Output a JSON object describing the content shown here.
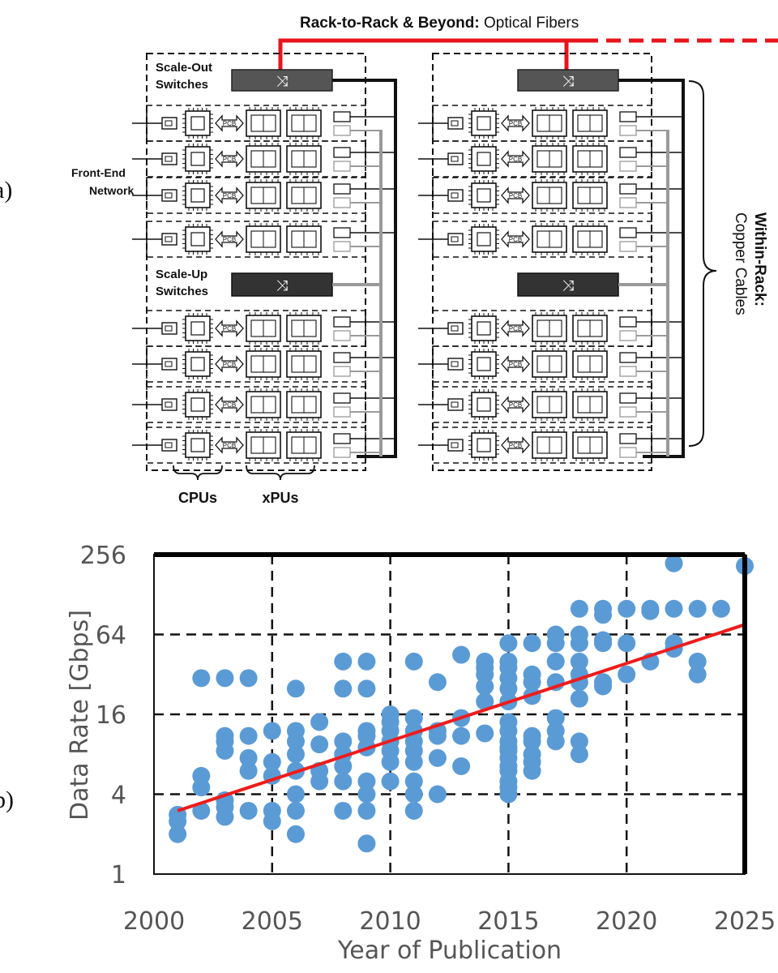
{
  "panel_a": {
    "marker": "a)",
    "rack_to_rack_bold": "Rack-to-Rack & Beyond:",
    "rack_to_rack_rest": " Optical Fibers",
    "scale_out_line1": "Scale-Out",
    "scale_out_line2": "Switches",
    "scale_up_line1": "Scale-Up",
    "scale_up_line2": "Switches",
    "front_end_line1": "Front-End",
    "front_end_line2": "Network",
    "pcb_label": "PCB",
    "cpus_label": "CPUs",
    "xpus_label": "xPUs",
    "within_rack_bold": "Within-Rack:",
    "within_rack_rest": "Copper Cables",
    "colors": {
      "fiber": "#e8141c",
      "switch": "#444444",
      "cable": "#111111",
      "grey_cable": "#9a9a9a"
    }
  },
  "panel_b": {
    "marker": "b)"
  },
  "chart_data": {
    "type": "scatter",
    "title": "",
    "xlabel": "Year of Publication",
    "ylabel": "Data Rate [Gbps]",
    "xlim": [
      2000,
      2025
    ],
    "ylim": [
      1,
      256
    ],
    "yscale": "log2",
    "xticks": [
      2000,
      2005,
      2010,
      2015,
      2020,
      2025
    ],
    "xtick_labels": [
      "2000",
      "2005",
      "2010",
      "2015",
      "2020",
      "2025"
    ],
    "yticks": [
      1,
      4,
      16,
      64,
      256
    ],
    "ytick_labels": [
      "1",
      "4",
      "16",
      "64",
      "256"
    ],
    "grid": true,
    "point_color": "#5b9bd5",
    "trend_color": "#ee1c1c",
    "trendline": {
      "x": [
        2001,
        2025
      ],
      "y": [
        3.0,
        76
      ]
    },
    "points": [
      [
        2001,
        2.0
      ],
      [
        2001,
        2.5
      ],
      [
        2001,
        2.8
      ],
      [
        2002,
        3.0
      ],
      [
        2002,
        4.5
      ],
      [
        2002,
        5.5
      ],
      [
        2002,
        30
      ],
      [
        2003,
        3.2
      ],
      [
        2003,
        2.7
      ],
      [
        2003,
        3.6
      ],
      [
        2003,
        8.5
      ],
      [
        2003,
        10
      ],
      [
        2003,
        11
      ],
      [
        2003,
        30
      ],
      [
        2004,
        3.0
      ],
      [
        2004,
        6
      ],
      [
        2004,
        7.5
      ],
      [
        2004,
        11
      ],
      [
        2004,
        30
      ],
      [
        2005,
        3.0
      ],
      [
        2005,
        2.5
      ],
      [
        2005,
        5.5
      ],
      [
        2005,
        7
      ],
      [
        2005,
        12
      ],
      [
        2006,
        2.0
      ],
      [
        2006,
        3.0
      ],
      [
        2006,
        4
      ],
      [
        2006,
        6
      ],
      [
        2006,
        8
      ],
      [
        2006,
        10
      ],
      [
        2006,
        12
      ],
      [
        2006,
        25
      ],
      [
        2007,
        5
      ],
      [
        2007,
        6
      ],
      [
        2007,
        9.5
      ],
      [
        2007,
        14
      ],
      [
        2008,
        3.0
      ],
      [
        2008,
        5
      ],
      [
        2008,
        6.5
      ],
      [
        2008,
        8
      ],
      [
        2008,
        10
      ],
      [
        2008,
        25
      ],
      [
        2008,
        40
      ],
      [
        2009,
        1.7
      ],
      [
        2009,
        3.0
      ],
      [
        2009,
        4
      ],
      [
        2009,
        5
      ],
      [
        2009,
        9
      ],
      [
        2009,
        11
      ],
      [
        2009,
        12
      ],
      [
        2009,
        25
      ],
      [
        2009,
        40
      ],
      [
        2010,
        5
      ],
      [
        2010,
        7
      ],
      [
        2010,
        8.5
      ],
      [
        2010,
        10
      ],
      [
        2010,
        12
      ],
      [
        2010,
        14
      ],
      [
        2010,
        16
      ],
      [
        2011,
        3
      ],
      [
        2011,
        4
      ],
      [
        2011,
        5
      ],
      [
        2011,
        7
      ],
      [
        2011,
        8.5
      ],
      [
        2011,
        10
      ],
      [
        2011,
        12
      ],
      [
        2011,
        15
      ],
      [
        2011,
        40
      ],
      [
        2012,
        4
      ],
      [
        2012,
        7.5
      ],
      [
        2012,
        11
      ],
      [
        2012,
        12
      ],
      [
        2012,
        28
      ],
      [
        2013,
        6.5
      ],
      [
        2013,
        11
      ],
      [
        2013,
        15
      ],
      [
        2013,
        45
      ],
      [
        2014,
        11.5
      ],
      [
        2014,
        20
      ],
      [
        2014,
        26
      ],
      [
        2014,
        32
      ],
      [
        2014,
        36
      ],
      [
        2014,
        40
      ],
      [
        2015,
        4
      ],
      [
        2015,
        4.5
      ],
      [
        2015,
        5
      ],
      [
        2015,
        6
      ],
      [
        2015,
        6.5
      ],
      [
        2015,
        7.5
      ],
      [
        2015,
        8.5
      ],
      [
        2015,
        9
      ],
      [
        2015,
        10
      ],
      [
        2015,
        12
      ],
      [
        2015,
        14
      ],
      [
        2015,
        20
      ],
      [
        2015,
        25
      ],
      [
        2015,
        30
      ],
      [
        2015,
        36
      ],
      [
        2015,
        40
      ],
      [
        2015,
        55
      ],
      [
        2016,
        6
      ],
      [
        2016,
        7
      ],
      [
        2016,
        8
      ],
      [
        2016,
        10
      ],
      [
        2016,
        11
      ],
      [
        2016,
        22
      ],
      [
        2016,
        28
      ],
      [
        2016,
        32
      ],
      [
        2016,
        55
      ],
      [
        2017,
        10
      ],
      [
        2017,
        12
      ],
      [
        2017,
        15
      ],
      [
        2017,
        28
      ],
      [
        2017,
        40
      ],
      [
        2017,
        55
      ],
      [
        2017,
        64
      ],
      [
        2018,
        8
      ],
      [
        2018,
        10
      ],
      [
        2018,
        21
      ],
      [
        2018,
        28
      ],
      [
        2018,
        32
      ],
      [
        2018,
        40
      ],
      [
        2018,
        55
      ],
      [
        2018,
        64
      ],
      [
        2018,
        100
      ],
      [
        2019,
        26
      ],
      [
        2019,
        28
      ],
      [
        2019,
        55
      ],
      [
        2019,
        58
      ],
      [
        2019,
        90
      ],
      [
        2019,
        100
      ],
      [
        2020,
        32
      ],
      [
        2020,
        55
      ],
      [
        2020,
        100
      ],
      [
        2021,
        40
      ],
      [
        2021,
        96
      ],
      [
        2021,
        100
      ],
      [
        2022,
        50
      ],
      [
        2022,
        55
      ],
      [
        2022,
        100
      ],
      [
        2022,
        220
      ],
      [
        2023,
        32
      ],
      [
        2023,
        40
      ],
      [
        2023,
        100
      ],
      [
        2024,
        100
      ],
      [
        2025,
        210
      ]
    ]
  }
}
